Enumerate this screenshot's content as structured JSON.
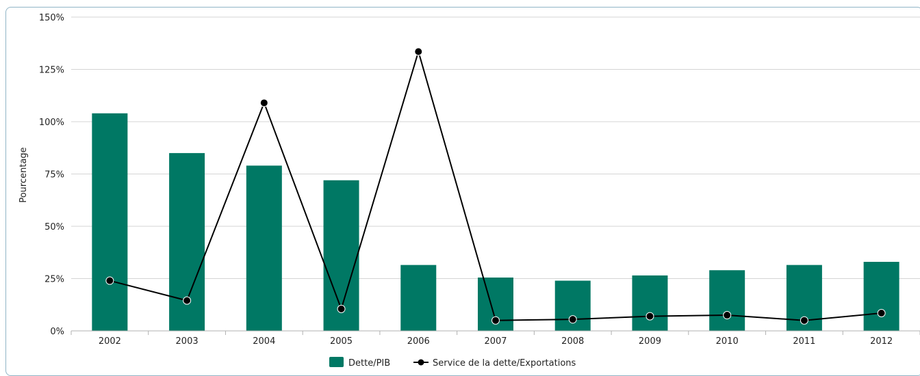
{
  "chart_data": {
    "type": "bar",
    "categories": [
      "2002",
      "2003",
      "2004",
      "2005",
      "2006",
      "2007",
      "2008",
      "2009",
      "2010",
      "2011",
      "2012"
    ],
    "series": [
      {
        "name": "Dette/PIB",
        "kind": "bar",
        "color": "#007864",
        "values": [
          104,
          85,
          79,
          72,
          31.5,
          25.5,
          24,
          26.5,
          29,
          31.5,
          33
        ]
      },
      {
        "name": "Service de la dette/Exportations",
        "kind": "line",
        "color": "#000000",
        "values": [
          24,
          14.5,
          109,
          10.5,
          133.5,
          5,
          5.5,
          7,
          7.5,
          5,
          8.5
        ]
      }
    ],
    "ylabel": "Pourcentage",
    "ylim": [
      0,
      150
    ],
    "yticks": [
      "0%",
      "25%",
      "50%",
      "75%",
      "100%",
      "125%",
      "150%"
    ],
    "ytick_values": [
      0,
      25,
      50,
      75,
      100,
      125,
      150
    ],
    "grid": true,
    "legend_position": "bottom-center"
  }
}
